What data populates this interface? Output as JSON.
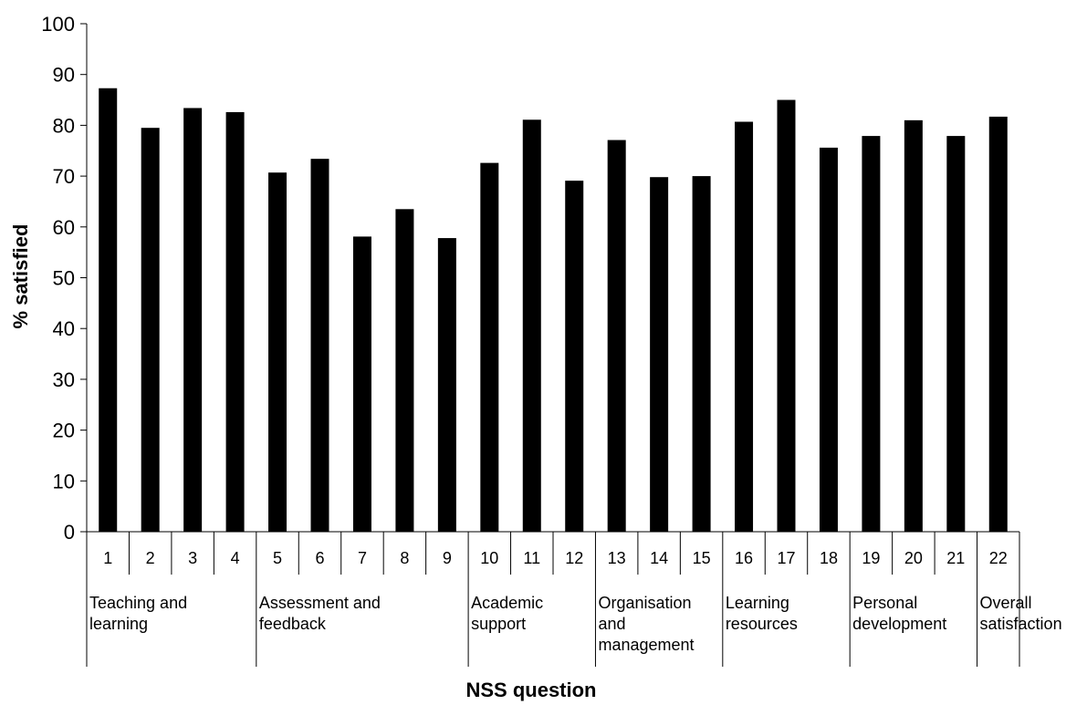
{
  "chart_data": {
    "type": "bar",
    "title": "",
    "xlabel": "NSS question",
    "ylabel": "% satisfied",
    "ylim": [
      0,
      100
    ],
    "yticks": [
      0,
      10,
      20,
      30,
      40,
      50,
      60,
      70,
      80,
      90,
      100
    ],
    "grid": false,
    "legend": "none",
    "bar_color": "#000000",
    "categories": [
      "1",
      "2",
      "3",
      "4",
      "5",
      "6",
      "7",
      "8",
      "9",
      "10",
      "11",
      "12",
      "13",
      "14",
      "15",
      "16",
      "17",
      "18",
      "19",
      "20",
      "21",
      "22"
    ],
    "values": [
      87.3,
      79.5,
      83.4,
      82.6,
      70.7,
      73.4,
      58.1,
      63.5,
      57.8,
      72.6,
      81.1,
      69.1,
      77.1,
      69.8,
      70.0,
      80.7,
      85.0,
      75.6,
      77.9,
      81.0,
      77.9,
      81.7
    ],
    "groups": [
      {
        "label_lines": [
          "Teaching and",
          "learning"
        ],
        "start": 0,
        "end": 3
      },
      {
        "label_lines": [
          "Assessment and",
          "feedback"
        ],
        "start": 4,
        "end": 8
      },
      {
        "label_lines": [
          "Academic",
          "support"
        ],
        "start": 9,
        "end": 11
      },
      {
        "label_lines": [
          "Organisation",
          "and",
          "management"
        ],
        "start": 12,
        "end": 14
      },
      {
        "label_lines": [
          "Learning",
          "resources"
        ],
        "start": 15,
        "end": 17
      },
      {
        "label_lines": [
          "Personal",
          "development"
        ],
        "start": 18,
        "end": 20
      },
      {
        "label_lines": [
          "Overall",
          "satisfaction"
        ],
        "start": 21,
        "end": 21
      }
    ]
  }
}
